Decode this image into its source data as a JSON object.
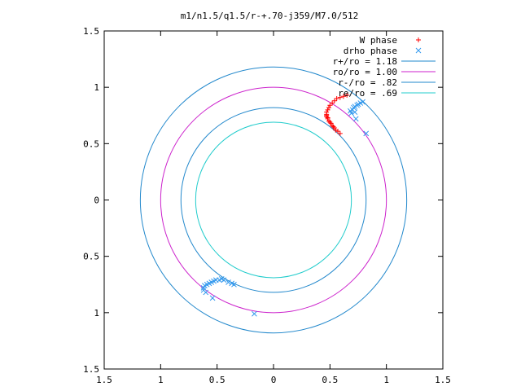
{
  "chart_data": {
    "type": "scatter",
    "title": "m1/n1.5/q1.5/r-+.70-j359/M7.0/512",
    "xlabel": "",
    "ylabel": "",
    "xlim": [
      -1.5,
      1.5
    ],
    "ylim": [
      -1.5,
      1.5
    ],
    "x_ticks": [
      -1.5,
      -1,
      -0.5,
      0,
      0.5,
      1,
      1.5
    ],
    "y_ticks": [
      -1.5,
      -1,
      -0.5,
      0,
      0.5,
      1,
      1.5
    ],
    "x_tick_labels": [
      "1.5",
      "1",
      "0.5",
      "0",
      "0.5",
      "1",
      "1.5"
    ],
    "y_tick_labels": [
      "1.5",
      "1",
      "0.5",
      "0",
      "0.5",
      "1",
      "1.5"
    ],
    "grid": false,
    "legend_position": "top-right",
    "series": [
      {
        "name": "W phase",
        "marker": "plus",
        "color": "#ff0000",
        "points": [
          [
            0.55,
            0.62
          ],
          [
            0.57,
            0.61
          ],
          [
            0.59,
            0.59
          ],
          [
            0.54,
            0.64
          ],
          [
            0.52,
            0.66
          ],
          [
            0.51,
            0.68
          ],
          [
            0.49,
            0.7
          ],
          [
            0.48,
            0.72
          ],
          [
            0.47,
            0.74
          ],
          [
            0.47,
            0.76
          ],
          [
            0.47,
            0.78
          ],
          [
            0.48,
            0.8
          ],
          [
            0.49,
            0.82
          ],
          [
            0.5,
            0.84
          ],
          [
            0.52,
            0.86
          ],
          [
            0.54,
            0.88
          ],
          [
            0.56,
            0.9
          ],
          [
            0.59,
            0.91
          ],
          [
            0.62,
            0.92
          ],
          [
            0.65,
            0.93
          ],
          [
            0.47,
            0.75
          ],
          [
            0.48,
            0.73
          ],
          [
            0.5,
            0.69
          ],
          [
            0.53,
            0.65
          ]
        ]
      },
      {
        "name": "drho phase",
        "marker": "cross",
        "color": "#3399ee",
        "points": [
          [
            0.68,
            0.79
          ],
          [
            0.7,
            0.8
          ],
          [
            0.71,
            0.82
          ],
          [
            0.72,
            0.83
          ],
          [
            0.74,
            0.84
          ],
          [
            0.75,
            0.85
          ],
          [
            0.77,
            0.86
          ],
          [
            0.79,
            0.87
          ],
          [
            0.69,
            0.77
          ],
          [
            0.72,
            0.78
          ],
          [
            0.73,
            0.72
          ],
          [
            0.82,
            0.59
          ],
          [
            -0.62,
            -0.8
          ],
          [
            -0.62,
            -0.78
          ],
          [
            -0.61,
            -0.76
          ],
          [
            -0.59,
            -0.75
          ],
          [
            -0.57,
            -0.74
          ],
          [
            -0.55,
            -0.73
          ],
          [
            -0.53,
            -0.72
          ],
          [
            -0.51,
            -0.71
          ],
          [
            -0.48,
            -0.71
          ],
          [
            -0.46,
            -0.7
          ],
          [
            -0.44,
            -0.71
          ],
          [
            -0.4,
            -0.73
          ],
          [
            -0.37,
            -0.74
          ],
          [
            -0.35,
            -0.75
          ],
          [
            -0.6,
            -0.82
          ],
          [
            -0.54,
            -0.87
          ],
          [
            -0.17,
            -1.01
          ]
        ]
      },
      {
        "name": "r+/ro = 1.18",
        "type": "circle",
        "radius": 1.18,
        "color": "#2288cc"
      },
      {
        "name": "ro/ro = 1.00",
        "type": "circle",
        "radius": 1.0,
        "color": "#cc22cc"
      },
      {
        "name": "r-/ro = .82",
        "type": "circle",
        "radius": 0.82,
        "color": "#2288cc"
      },
      {
        "name": "re/ro = .69",
        "type": "circle",
        "radius": 0.69,
        "color": "#22cccc"
      }
    ]
  }
}
